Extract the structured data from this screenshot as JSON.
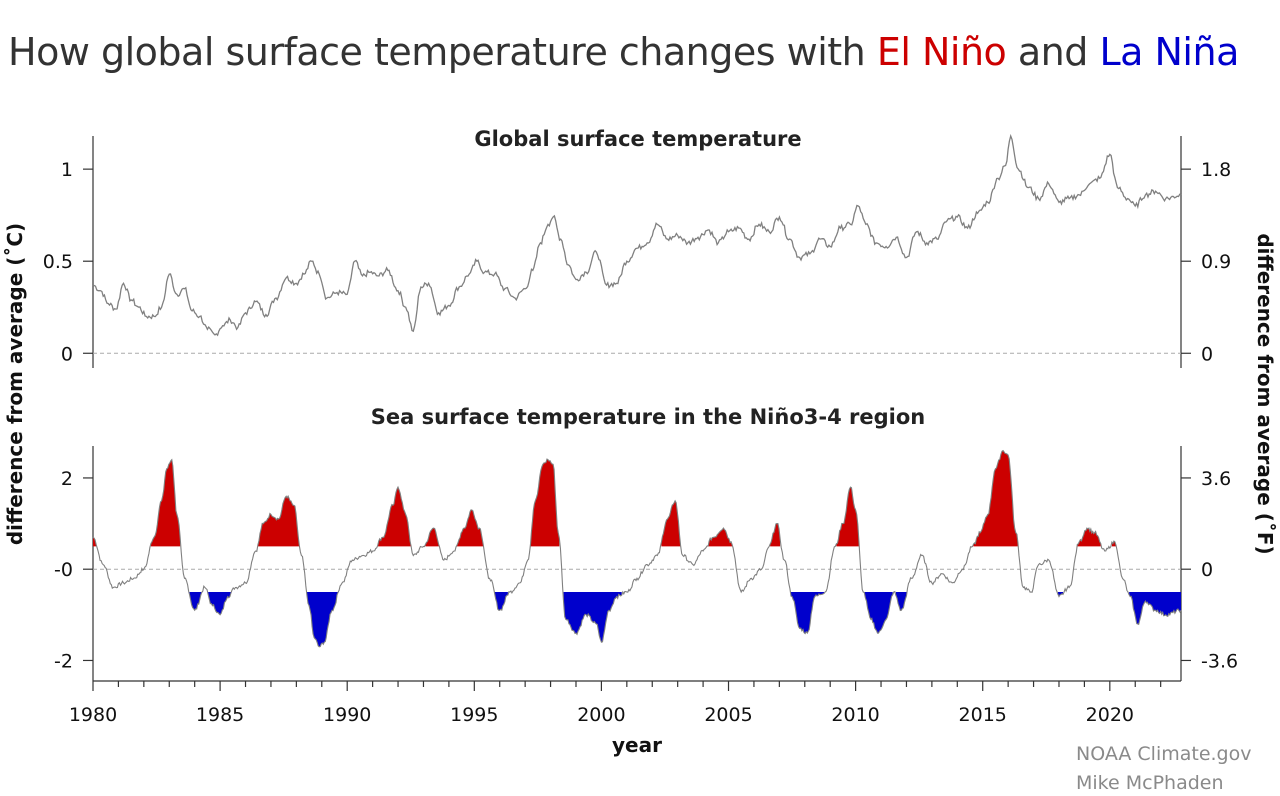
{
  "title": {
    "prefix": "How global surface temperature changes with ",
    "el_nino": "El Niño",
    "middle": " and ",
    "la_nina": "La Niña"
  },
  "colors": {
    "el_nino": "#cc0000",
    "la_nina": "#0000cc",
    "temperature_line": "#808080",
    "zero_line": "#aaaaaa",
    "credit_text": "#8a8a8a"
  },
  "credits": [
    "NOAA Climate.gov",
    "Mike McPhaden"
  ],
  "chart_data": [
    {
      "type": "line",
      "title": "Global surface temperature",
      "xlabel": "year",
      "ylabel": "difference from average (˚C)",
      "ylabel_right": "difference from average (˚F)",
      "xlim": [
        1980,
        2022.8
      ],
      "ylim": [
        -0.08,
        1.18
      ],
      "yticks": [
        {
          "value": 1,
          "label": "1"
        },
        {
          "value": 0.5,
          "label": "0.5"
        },
        {
          "value": 0,
          "label": "0"
        }
      ],
      "yticks_right": [
        {
          "value": 1.8,
          "label": "1.8"
        },
        {
          "value": 0.9,
          "label": "0.9"
        },
        {
          "value": 0,
          "label": "0"
        }
      ],
      "reference_line": 0,
      "series": [
        {
          "values_note": "monthly-smoothed anomaly",
          "x": [
            1980.0,
            1980.3,
            1980.6,
            1980.9,
            1981.2,
            1981.5,
            1981.8,
            1982.1,
            1982.4,
            1982.7,
            1983.0,
            1983.3,
            1983.6,
            1983.9,
            1984.2,
            1984.5,
            1984.8,
            1985.1,
            1985.4,
            1985.7,
            1986.0,
            1986.4,
            1986.8,
            1987.2,
            1987.6,
            1988.0,
            1988.3,
            1988.6,
            1988.9,
            1989.2,
            1989.6,
            1990.0,
            1990.3,
            1990.6,
            1990.9,
            1991.2,
            1991.6,
            1992.0,
            1992.3,
            1992.6,
            1992.9,
            1993.2,
            1993.6,
            1994.0,
            1994.4,
            1994.8,
            1995.1,
            1995.4,
            1995.8,
            1996.2,
            1996.6,
            1997.0,
            1997.3,
            1997.6,
            1997.9,
            1998.1,
            1998.4,
            1998.7,
            1999.0,
            1999.4,
            1999.8,
            2000.2,
            2000.6,
            2001.0,
            2001.4,
            2001.8,
            2002.2,
            2002.6,
            2003.0,
            2003.4,
            2003.8,
            2004.2,
            2004.6,
            2005.0,
            2005.4,
            2005.8,
            2006.2,
            2006.6,
            2007.0,
            2007.4,
            2007.8,
            2008.2,
            2008.6,
            2009.0,
            2009.4,
            2009.8,
            2010.1,
            2010.4,
            2010.8,
            2011.2,
            2011.6,
            2012.0,
            2012.4,
            2012.8,
            2013.2,
            2013.6,
            2014.0,
            2014.4,
            2014.8,
            2015.2,
            2015.6,
            2015.9,
            2016.1,
            2016.4,
            2016.8,
            2017.2,
            2017.6,
            2018.0,
            2018.4,
            2018.8,
            2019.2,
            2019.6,
            2020.0,
            2020.3,
            2020.7,
            2021.0,
            2021.4,
            2021.8,
            2022.2,
            2022.8
          ],
          "y": [
            0.37,
            0.34,
            0.27,
            0.24,
            0.38,
            0.29,
            0.25,
            0.2,
            0.2,
            0.25,
            0.43,
            0.32,
            0.35,
            0.23,
            0.2,
            0.13,
            0.1,
            0.15,
            0.18,
            0.14,
            0.22,
            0.28,
            0.21,
            0.3,
            0.41,
            0.38,
            0.43,
            0.5,
            0.43,
            0.3,
            0.33,
            0.32,
            0.5,
            0.42,
            0.44,
            0.42,
            0.45,
            0.34,
            0.25,
            0.12,
            0.36,
            0.38,
            0.22,
            0.26,
            0.36,
            0.43,
            0.5,
            0.44,
            0.43,
            0.35,
            0.3,
            0.35,
            0.45,
            0.6,
            0.7,
            0.74,
            0.62,
            0.48,
            0.4,
            0.44,
            0.55,
            0.37,
            0.38,
            0.5,
            0.57,
            0.6,
            0.7,
            0.62,
            0.64,
            0.6,
            0.63,
            0.67,
            0.6,
            0.66,
            0.68,
            0.62,
            0.7,
            0.66,
            0.74,
            0.62,
            0.52,
            0.54,
            0.62,
            0.58,
            0.68,
            0.7,
            0.8,
            0.7,
            0.6,
            0.58,
            0.63,
            0.52,
            0.66,
            0.6,
            0.62,
            0.72,
            0.74,
            0.68,
            0.76,
            0.82,
            0.95,
            1.02,
            1.18,
            1.0,
            0.9,
            0.84,
            0.92,
            0.82,
            0.84,
            0.86,
            0.92,
            0.95,
            1.08,
            0.9,
            0.84,
            0.8,
            0.86,
            0.88,
            0.84,
            0.86
          ]
        }
      ]
    },
    {
      "type": "area",
      "title": "Sea surface temperature in the Niño3-4 region",
      "xlabel": "year",
      "xlim": [
        1980,
        2022.8
      ],
      "ylim": [
        -2.45,
        2.7
      ],
      "xticks": [
        {
          "value": 1980,
          "label": "1980"
        },
        {
          "value": 1985,
          "label": "1985"
        },
        {
          "value": 1990,
          "label": "1990"
        },
        {
          "value": 1995,
          "label": "1995"
        },
        {
          "value": 2000,
          "label": "2000"
        },
        {
          "value": 2005,
          "label": "2005"
        },
        {
          "value": 2010,
          "label": "2010"
        },
        {
          "value": 2015,
          "label": "2015"
        },
        {
          "value": 2020,
          "label": "2020"
        }
      ],
      "yticks": [
        {
          "value": 2,
          "label": "2"
        },
        {
          "value": 0,
          "label": "-0"
        },
        {
          "value": -2,
          "label": "-2"
        }
      ],
      "yticks_right": [
        {
          "value": 2,
          "label": "3.6"
        },
        {
          "value": 0,
          "label": "0"
        },
        {
          "value": -2,
          "label": "-3.6"
        }
      ],
      "reference_line": 0,
      "el_nino_threshold": 0.5,
      "la_nina_threshold": -0.5,
      "series": [
        {
          "x": [
            1980.0,
            1980.4,
            1980.8,
            1981.2,
            1981.6,
            1982.0,
            1982.4,
            1982.7,
            1982.9,
            1983.1,
            1983.3,
            1983.6,
            1984.0,
            1984.4,
            1984.7,
            1985.0,
            1985.3,
            1985.6,
            1986.0,
            1986.4,
            1986.7,
            1987.0,
            1987.3,
            1987.6,
            1987.9,
            1988.2,
            1988.5,
            1988.7,
            1988.9,
            1989.1,
            1989.4,
            1989.8,
            1990.2,
            1990.6,
            1991.0,
            1991.4,
            1991.8,
            1992.0,
            1992.3,
            1992.6,
            1993.0,
            1993.4,
            1993.8,
            1994.2,
            1994.6,
            1994.9,
            1995.2,
            1995.6,
            1996.0,
            1996.4,
            1996.8,
            1997.1,
            1997.4,
            1997.7,
            1997.9,
            1998.1,
            1998.3,
            1998.6,
            1999.0,
            1999.4,
            1999.8,
            2000.0,
            2000.3,
            2000.6,
            2001.0,
            2001.4,
            2001.8,
            2002.2,
            2002.6,
            2002.9,
            2003.2,
            2003.6,
            2004.0,
            2004.4,
            2004.8,
            2005.1,
            2005.5,
            2005.9,
            2006.3,
            2006.6,
            2006.9,
            2007.2,
            2007.5,
            2007.8,
            2008.1,
            2008.4,
            2008.8,
            2009.2,
            2009.5,
            2009.8,
            2010.0,
            2010.3,
            2010.6,
            2010.9,
            2011.2,
            2011.5,
            2011.8,
            2012.2,
            2012.6,
            2013.0,
            2013.4,
            2013.8,
            2014.2,
            2014.6,
            2014.9,
            2015.2,
            2015.5,
            2015.8,
            2016.0,
            2016.3,
            2016.6,
            2016.9,
            2017.2,
            2017.6,
            2018.0,
            2018.4,
            2018.8,
            2019.1,
            2019.4,
            2019.8,
            2020.2,
            2020.5,
            2020.8,
            2021.1,
            2021.4,
            2021.8,
            2022.2,
            2022.8
          ],
          "y": [
            0.7,
            0.1,
            -0.4,
            -0.3,
            -0.2,
            0.0,
            0.7,
            1.5,
            2.2,
            2.4,
            1.2,
            -0.2,
            -0.9,
            -0.4,
            -0.8,
            -1.0,
            -0.6,
            -0.4,
            -0.3,
            0.4,
            1.0,
            1.2,
            1.1,
            1.6,
            1.4,
            0.3,
            -0.8,
            -1.5,
            -1.7,
            -1.6,
            -0.9,
            -0.3,
            0.2,
            0.3,
            0.4,
            0.7,
            1.4,
            1.8,
            1.2,
            0.3,
            0.5,
            0.9,
            0.2,
            0.4,
            0.9,
            1.3,
            0.9,
            -0.2,
            -0.9,
            -0.5,
            -0.3,
            0.2,
            1.5,
            2.3,
            2.4,
            2.3,
            0.8,
            -1.1,
            -1.4,
            -1.0,
            -1.2,
            -1.6,
            -0.9,
            -0.6,
            -0.5,
            -0.2,
            0.1,
            0.3,
            1.1,
            1.5,
            0.3,
            0.1,
            0.4,
            0.7,
            0.9,
            0.6,
            -0.5,
            -0.2,
            0.0,
            0.5,
            1.0,
            0.2,
            -0.6,
            -1.3,
            -1.4,
            -0.6,
            -0.5,
            0.5,
            1.0,
            1.8,
            1.3,
            -0.5,
            -1.1,
            -1.4,
            -1.1,
            -0.5,
            -0.9,
            -0.2,
            0.3,
            -0.3,
            -0.1,
            -0.3,
            0.0,
            0.5,
            0.8,
            1.2,
            2.2,
            2.6,
            2.5,
            0.8,
            -0.4,
            -0.5,
            0.1,
            0.2,
            -0.6,
            -0.4,
            0.6,
            0.9,
            0.8,
            0.4,
            0.6,
            -0.2,
            -0.6,
            -1.2,
            -0.7,
            -0.9,
            -1.0,
            -0.9
          ]
        }
      ]
    }
  ]
}
